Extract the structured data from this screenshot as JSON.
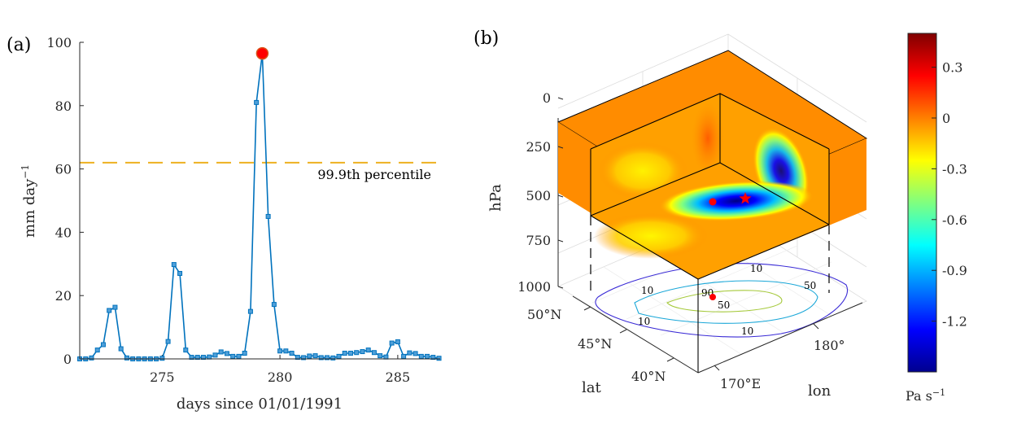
{
  "colors": {
    "series": "#0072BD",
    "threshold": "#EDB120",
    "peak_marker": "#FF0000",
    "axis": "#262626"
  },
  "chart_data": [
    {
      "panel_label": "(a)",
      "type": "line",
      "xlabel": "days since 01/01/1991",
      "ylabel": "mm day",
      "ylabel_exponent": "−1",
      "xlim": [
        271.5,
        286.8
      ],
      "ylim": [
        0,
        100
      ],
      "xticks": [
        275,
        280,
        285
      ],
      "yticks": [
        0,
        20,
        40,
        60,
        80,
        100
      ],
      "threshold": {
        "value": 62,
        "label": "99.9th percentile"
      },
      "peak": {
        "x": 279.25,
        "y": 96.5
      },
      "series": [
        {
          "x": [
            271.5,
            271.75,
            272.0,
            272.25,
            272.5,
            272.75,
            273.0,
            273.25,
            273.5,
            273.75,
            274.0,
            274.25,
            274.5,
            274.75,
            275.0,
            275.25,
            275.5,
            275.75,
            276.0,
            276.25,
            276.5,
            276.75,
            277.0,
            277.25,
            277.5,
            277.75,
            278.0,
            278.25,
            278.5,
            278.75,
            279.0,
            279.25,
            279.5,
            279.75,
            280.0,
            280.25,
            280.5,
            280.75,
            281.0,
            281.25,
            281.5,
            281.75,
            282.0,
            282.25,
            282.5,
            282.75,
            283.0,
            283.25,
            283.5,
            283.75,
            284.0,
            284.25,
            284.5,
            284.75,
            285.0,
            285.25,
            285.5,
            285.75,
            286.0,
            286.25,
            286.5,
            286.75
          ],
          "y": [
            0,
            0,
            0.3,
            2.8,
            4.5,
            15.3,
            16.3,
            3.2,
            0.3,
            0,
            0,
            0,
            0,
            0,
            0.2,
            5.5,
            29.8,
            27,
            2.8,
            0.5,
            0.5,
            0.5,
            0.6,
            1.2,
            2.2,
            1.7,
            0.8,
            0.8,
            1.8,
            15,
            81,
            96.5,
            45,
            17.2,
            2.5,
            2.5,
            1.8,
            0.5,
            0.4,
            0.9,
            1,
            0.4,
            0.4,
            0.3,
            0.8,
            1.8,
            1.8,
            2,
            2.3,
            2.8,
            2,
            1,
            0.6,
            5,
            5.4,
            0.8,
            1.9,
            1.7,
            0.8,
            0.8,
            0.5,
            0.2
          ]
        }
      ]
    },
    {
      "panel_label": "(b)",
      "type": "heatmap",
      "zlabel": "hPa",
      "xlabel": "lat",
      "ylabel": "lon",
      "zticks": [
        "0",
        "250",
        "500",
        "750",
        "1000"
      ],
      "lat_ticks": [
        "50°N",
        "45°N",
        "40°N"
      ],
      "lon_ticks": [
        "170°E",
        "180°"
      ],
      "contour_labels": [
        "10",
        "10",
        "10",
        "10",
        "50",
        "50",
        "90"
      ],
      "colorbar": {
        "ticks": [
          "0.3",
          "0",
          "-0.3",
          "-0.6",
          "-0.9",
          "-1.2"
        ],
        "values": [
          0.3,
          0,
          -0.3,
          -0.6,
          -0.9,
          -1.2
        ],
        "range": [
          -1.5,
          0.5
        ],
        "unit": "Pa s",
        "unit_exponent": "−1"
      },
      "marker_star": "red-star",
      "marker_dot": "red-dot"
    }
  ]
}
